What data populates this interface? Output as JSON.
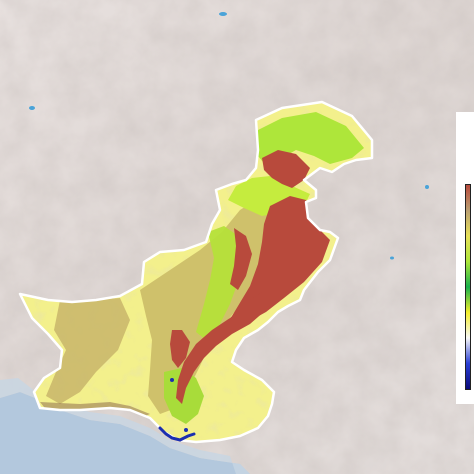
{
  "map": {
    "colors": {
      "terrain_base": "#e3dcda",
      "terrain_shade": "#d2c9c6",
      "sea": "#b3c8dd",
      "border": "#ffffff",
      "class_low": "#f3f08c",
      "class_mid": "#cfc16b",
      "class_green": "#aee63a",
      "class_high": "#b84a3c",
      "coast_blue": "#1b2fb0",
      "water_body": "#4aa3d8"
    }
  },
  "legend": {
    "ramp_colors": [
      "#b84a3c",
      "#bba073",
      "#e7e15a",
      "#aee63a",
      "#18b14c",
      "#f4ef2c",
      "#f7f7f7",
      "#2a3fd6",
      "#0a0a7a"
    ]
  }
}
